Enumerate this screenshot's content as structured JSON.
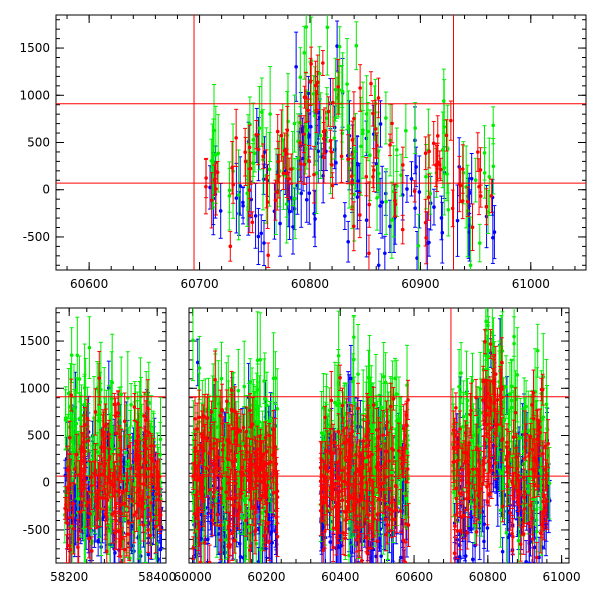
{
  "chart_data": [
    {
      "type": "scatter",
      "title": "",
      "xlabel": "",
      "ylabel": "",
      "xlim": [
        60570,
        61050
      ],
      "ylim": [
        -850,
        1850
      ],
      "x_ticks": [
        60600,
        60700,
        60800,
        60900,
        61000
      ],
      "y_ticks": [
        -500,
        0,
        500,
        1000,
        1500
      ],
      "reference_lines": {
        "horizontal": [
          70,
          910
        ],
        "vertical": [
          60695,
          60930
        ]
      },
      "clusters": [
        {
          "x_range": [
            60705,
            60720
          ],
          "center": 150,
          "spread": 200,
          "density": 1
        },
        {
          "x_range": [
            60725,
            60770
          ],
          "center": 100,
          "spread": 350,
          "density": 3
        },
        {
          "x_range": [
            60770,
            60790
          ],
          "center": 250,
          "spread": 380,
          "density": 4
        },
        {
          "x_range": [
            60790,
            60830
          ],
          "center": 700,
          "spread": 380,
          "density": 6
        },
        {
          "x_range": [
            60830,
            60860
          ],
          "center": 300,
          "spread": 400,
          "density": 4
        },
        {
          "x_range": [
            60860,
            60930
          ],
          "center": 100,
          "spread": 380,
          "density": 3
        },
        {
          "x_range": [
            60930,
            60968
          ],
          "center": 0,
          "spread": 300,
          "density": 2
        }
      ],
      "series": [
        {
          "color": "#0000ff",
          "offset": -220,
          "error": 280
        },
        {
          "color": "#00ee00",
          "offset": 200,
          "error": 380
        },
        {
          "color": "#ff0000",
          "offset": 0,
          "error": 220
        }
      ]
    },
    {
      "type": "scatter",
      "title": "",
      "xlabel": "",
      "ylabel": "",
      "segments": [
        {
          "xlim": [
            58170,
            58420
          ],
          "x_ticks": [
            58200,
            58400
          ]
        },
        {
          "xlim": [
            59990,
            61020
          ],
          "x_ticks": [
            60000,
            60200,
            60400,
            60600,
            60800,
            61000
          ]
        }
      ],
      "ylim": [
        -850,
        1850
      ],
      "y_ticks": [
        -500,
        0,
        500,
        1000,
        1500
      ],
      "reference_lines": {
        "horizontal": [
          70,
          910
        ],
        "vertical": [
          60700
        ]
      },
      "clusters": [
        {
          "x_range": [
            58190,
            58410
          ],
          "center": 50,
          "spread": 420,
          "density": 8
        },
        {
          "x_range": [
            60000,
            60230
          ],
          "center": 50,
          "spread": 420,
          "density": 8
        },
        {
          "x_range": [
            60345,
            60585
          ],
          "center": 80,
          "spread": 420,
          "density": 8
        },
        {
          "x_range": [
            60705,
            60790
          ],
          "center": 100,
          "spread": 420,
          "density": 6
        },
        {
          "x_range": [
            60790,
            60840
          ],
          "center": 650,
          "spread": 420,
          "density": 8
        },
        {
          "x_range": [
            60840,
            60968
          ],
          "center": 100,
          "spread": 420,
          "density": 6
        }
      ],
      "series": [
        {
          "color": "#0000ff",
          "offset": -250,
          "error": 280
        },
        {
          "color": "#00ee00",
          "offset": 220,
          "error": 380
        },
        {
          "color": "#ff0000",
          "offset": 0,
          "error": 220
        }
      ]
    }
  ]
}
